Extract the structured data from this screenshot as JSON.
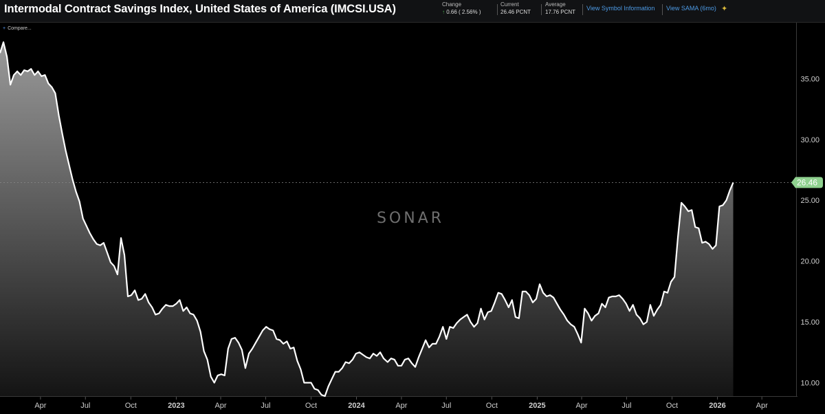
{
  "header": {
    "title": "Intermodal Contract Savings Index, United States of America (IMCSI.USA)",
    "change_label": "Change",
    "change_arrow": "↑",
    "change_value": "0.66 ( 2.56% )",
    "current_label": "Current",
    "current_value": "26.46 PCNT",
    "average_label": "Average",
    "average_value": "17.76 PCNT",
    "link_symbol_info": "View Symbol Information",
    "link_sama": "View SAMA (6mo)",
    "sama_icon": "chart-sparkle-icon"
  },
  "compare_label": "Compare...",
  "watermark": "SONAR",
  "colors": {
    "line": "#ffffff",
    "fill_top": "#9a9a9a",
    "fill_bottom": "#141414",
    "current_badge": "#8fd18f",
    "background": "#000000"
  },
  "chart_data": {
    "type": "area",
    "title": "Intermodal Contract Savings Index, United States of America (IMCSI.USA)",
    "xlabel": "",
    "ylabel": "",
    "ylim": [
      8.9,
      39.6
    ],
    "xlim": [
      "2022-01-09",
      "2026-06-01"
    ],
    "y_ticks": [
      "10.00",
      "15.00",
      "20.00",
      "25.00",
      "30.00",
      "35.00"
    ],
    "x_ticks": [
      {
        "date": "2022-04-01",
        "label": "Apr",
        "bold": false
      },
      {
        "date": "2022-07-01",
        "label": "Jul",
        "bold": false
      },
      {
        "date": "2022-10-01",
        "label": "Oct",
        "bold": false
      },
      {
        "date": "2023-01-01",
        "label": "2023",
        "bold": true
      },
      {
        "date": "2023-04-01",
        "label": "Apr",
        "bold": false
      },
      {
        "date": "2023-07-01",
        "label": "Jul",
        "bold": false
      },
      {
        "date": "2023-10-01",
        "label": "Oct",
        "bold": false
      },
      {
        "date": "2024-01-01",
        "label": "2024",
        "bold": true
      },
      {
        "date": "2024-04-01",
        "label": "Apr",
        "bold": false
      },
      {
        "date": "2024-07-01",
        "label": "Jul",
        "bold": false
      },
      {
        "date": "2024-10-01",
        "label": "Oct",
        "bold": false
      },
      {
        "date": "2025-01-01",
        "label": "2025",
        "bold": true
      },
      {
        "date": "2025-04-01",
        "label": "Apr",
        "bold": false
      },
      {
        "date": "2025-07-01",
        "label": "Jul",
        "bold": false
      },
      {
        "date": "2025-10-01",
        "label": "Oct",
        "bold": false
      },
      {
        "date": "2026-01-01",
        "label": "2026",
        "bold": true
      },
      {
        "date": "2026-04-01",
        "label": "Apr",
        "bold": false
      }
    ],
    "current": {
      "value": 26.46,
      "label": "26.46"
    },
    "series": [
      {
        "values": [
          [
            "2022-01-09",
            37.1
          ],
          [
            "2022-01-16",
            38.0
          ],
          [
            "2022-01-23",
            36.8
          ],
          [
            "2022-01-30",
            34.5
          ],
          [
            "2022-02-06",
            35.3
          ],
          [
            "2022-02-13",
            35.6
          ],
          [
            "2022-02-20",
            35.3
          ],
          [
            "2022-02-27",
            35.7
          ],
          [
            "2022-03-06",
            35.6
          ],
          [
            "2022-03-13",
            35.8
          ],
          [
            "2022-03-20",
            35.3
          ],
          [
            "2022-03-27",
            35.6
          ],
          [
            "2022-04-03",
            35.2
          ],
          [
            "2022-04-10",
            35.3
          ],
          [
            "2022-04-17",
            34.6
          ],
          [
            "2022-04-24",
            34.3
          ],
          [
            "2022-05-01",
            33.8
          ],
          [
            "2022-05-08",
            32.0
          ],
          [
            "2022-05-15",
            30.5
          ],
          [
            "2022-05-22",
            29.1
          ],
          [
            "2022-05-29",
            27.9
          ],
          [
            "2022-06-05",
            26.7
          ],
          [
            "2022-06-12",
            25.7
          ],
          [
            "2022-06-19",
            24.9
          ],
          [
            "2022-06-26",
            23.5
          ],
          [
            "2022-07-03",
            22.9
          ],
          [
            "2022-07-10",
            22.3
          ],
          [
            "2022-07-17",
            21.8
          ],
          [
            "2022-07-24",
            21.4
          ],
          [
            "2022-07-31",
            21.3
          ],
          [
            "2022-08-07",
            21.5
          ],
          [
            "2022-08-14",
            20.7
          ],
          [
            "2022-08-21",
            19.9
          ],
          [
            "2022-08-28",
            19.6
          ],
          [
            "2022-09-04",
            18.9
          ],
          [
            "2022-09-11",
            21.9
          ],
          [
            "2022-09-18",
            20.5
          ],
          [
            "2022-09-25",
            17.1
          ],
          [
            "2022-10-02",
            17.2
          ],
          [
            "2022-10-09",
            17.6
          ],
          [
            "2022-10-16",
            16.8
          ],
          [
            "2022-10-23",
            16.9
          ],
          [
            "2022-10-30",
            17.3
          ],
          [
            "2022-11-06",
            16.6
          ],
          [
            "2022-11-13",
            16.2
          ],
          [
            "2022-11-20",
            15.6
          ],
          [
            "2022-11-27",
            15.7
          ],
          [
            "2022-12-04",
            16.1
          ],
          [
            "2022-12-11",
            16.4
          ],
          [
            "2022-12-18",
            16.3
          ],
          [
            "2022-12-25",
            16.3
          ],
          [
            "2023-01-01",
            16.5
          ],
          [
            "2023-01-08",
            16.8
          ],
          [
            "2023-01-15",
            15.9
          ],
          [
            "2023-01-22",
            16.2
          ],
          [
            "2023-01-29",
            15.7
          ],
          [
            "2023-02-05",
            15.6
          ],
          [
            "2023-02-12",
            15.1
          ],
          [
            "2023-02-19",
            14.2
          ],
          [
            "2023-02-26",
            12.6
          ],
          [
            "2023-03-05",
            11.9
          ],
          [
            "2023-03-12",
            10.5
          ],
          [
            "2023-03-19",
            10.0
          ],
          [
            "2023-03-26",
            10.6
          ],
          [
            "2023-04-02",
            10.7
          ],
          [
            "2023-04-09",
            10.6
          ],
          [
            "2023-04-16",
            12.8
          ],
          [
            "2023-04-23",
            13.6
          ],
          [
            "2023-04-30",
            13.7
          ],
          [
            "2023-05-07",
            13.3
          ],
          [
            "2023-05-14",
            12.7
          ],
          [
            "2023-05-21",
            11.2
          ],
          [
            "2023-05-28",
            12.4
          ],
          [
            "2023-06-04",
            12.8
          ],
          [
            "2023-06-11",
            13.3
          ],
          [
            "2023-06-18",
            13.8
          ],
          [
            "2023-06-25",
            14.3
          ],
          [
            "2023-07-02",
            14.6
          ],
          [
            "2023-07-09",
            14.4
          ],
          [
            "2023-07-16",
            14.3
          ],
          [
            "2023-07-23",
            13.6
          ],
          [
            "2023-07-30",
            13.5
          ],
          [
            "2023-08-06",
            13.2
          ],
          [
            "2023-08-13",
            13.4
          ],
          [
            "2023-08-20",
            12.8
          ],
          [
            "2023-08-27",
            12.9
          ],
          [
            "2023-09-03",
            11.8
          ],
          [
            "2023-09-10",
            11.1
          ],
          [
            "2023-09-17",
            10.0
          ],
          [
            "2023-09-24",
            10.0
          ],
          [
            "2023-10-01",
            10.0
          ],
          [
            "2023-10-08",
            9.5
          ],
          [
            "2023-10-15",
            9.4
          ],
          [
            "2023-10-22",
            9.0
          ],
          [
            "2023-10-29",
            8.9
          ],
          [
            "2023-11-05",
            9.7
          ],
          [
            "2023-11-12",
            10.3
          ],
          [
            "2023-11-19",
            10.9
          ],
          [
            "2023-11-26",
            10.9
          ],
          [
            "2023-12-03",
            11.2
          ],
          [
            "2023-12-10",
            11.7
          ],
          [
            "2023-12-17",
            11.6
          ],
          [
            "2023-12-24",
            11.9
          ],
          [
            "2023-12-31",
            12.4
          ],
          [
            "2024-01-07",
            12.5
          ],
          [
            "2024-01-14",
            12.3
          ],
          [
            "2024-01-21",
            12.1
          ],
          [
            "2024-01-28",
            12.0
          ],
          [
            "2024-02-04",
            12.4
          ],
          [
            "2024-02-11",
            12.2
          ],
          [
            "2024-02-18",
            12.5
          ],
          [
            "2024-02-25",
            12.0
          ],
          [
            "2024-03-04",
            11.7
          ],
          [
            "2024-03-11",
            12.0
          ],
          [
            "2024-03-18",
            11.9
          ],
          [
            "2024-03-25",
            11.4
          ],
          [
            "2024-04-01",
            11.4
          ],
          [
            "2024-04-08",
            11.9
          ],
          [
            "2024-04-15",
            12.0
          ],
          [
            "2024-04-22",
            11.6
          ],
          [
            "2024-04-29",
            11.3
          ],
          [
            "2024-05-06",
            12.1
          ],
          [
            "2024-05-13",
            12.8
          ],
          [
            "2024-05-20",
            13.5
          ],
          [
            "2024-05-27",
            12.9
          ],
          [
            "2024-06-03",
            13.2
          ],
          [
            "2024-06-10",
            13.2
          ],
          [
            "2024-06-17",
            13.8
          ],
          [
            "2024-06-24",
            14.6
          ],
          [
            "2024-07-01",
            13.6
          ],
          [
            "2024-07-08",
            14.6
          ],
          [
            "2024-07-15",
            14.5
          ],
          [
            "2024-07-22",
            14.9
          ],
          [
            "2024-07-29",
            15.2
          ],
          [
            "2024-08-05",
            15.4
          ],
          [
            "2024-08-12",
            15.6
          ],
          [
            "2024-08-19",
            15.0
          ],
          [
            "2024-08-26",
            14.6
          ],
          [
            "2024-09-02",
            14.9
          ],
          [
            "2024-09-09",
            16.1
          ],
          [
            "2024-09-16",
            15.2
          ],
          [
            "2024-09-23",
            15.8
          ],
          [
            "2024-09-30",
            15.9
          ],
          [
            "2024-10-07",
            16.6
          ],
          [
            "2024-10-14",
            17.4
          ],
          [
            "2024-10-21",
            17.3
          ],
          [
            "2024-10-28",
            16.8
          ],
          [
            "2024-11-04",
            16.2
          ],
          [
            "2024-11-11",
            16.8
          ],
          [
            "2024-11-18",
            15.4
          ],
          [
            "2024-11-25",
            15.3
          ],
          [
            "2024-12-02",
            17.5
          ],
          [
            "2024-12-09",
            17.5
          ],
          [
            "2024-12-16",
            17.2
          ],
          [
            "2024-12-23",
            16.6
          ],
          [
            "2024-12-30",
            16.9
          ],
          [
            "2025-01-06",
            18.1
          ],
          [
            "2025-01-13",
            17.4
          ],
          [
            "2025-01-20",
            17.1
          ],
          [
            "2025-01-27",
            17.2
          ],
          [
            "2025-02-03",
            17.0
          ],
          [
            "2025-02-10",
            16.5
          ],
          [
            "2025-02-17",
            16.0
          ],
          [
            "2025-02-24",
            15.6
          ],
          [
            "2025-03-03",
            15.1
          ],
          [
            "2025-03-10",
            14.8
          ],
          [
            "2025-03-17",
            14.6
          ],
          [
            "2025-03-24",
            14.0
          ],
          [
            "2025-03-31",
            13.3
          ],
          [
            "2025-04-07",
            16.1
          ],
          [
            "2025-04-14",
            15.7
          ],
          [
            "2025-04-21",
            15.1
          ],
          [
            "2025-04-28",
            15.5
          ],
          [
            "2025-05-05",
            15.7
          ],
          [
            "2025-05-12",
            16.5
          ],
          [
            "2025-05-19",
            16.2
          ],
          [
            "2025-05-26",
            17.0
          ],
          [
            "2025-06-02",
            17.1
          ],
          [
            "2025-06-09",
            17.1
          ],
          [
            "2025-06-16",
            17.2
          ],
          [
            "2025-06-23",
            16.9
          ],
          [
            "2025-06-30",
            16.5
          ],
          [
            "2025-07-07",
            15.9
          ],
          [
            "2025-07-14",
            16.4
          ],
          [
            "2025-07-21",
            15.6
          ],
          [
            "2025-07-28",
            15.3
          ],
          [
            "2025-08-04",
            14.8
          ],
          [
            "2025-08-11",
            15.0
          ],
          [
            "2025-08-18",
            16.4
          ],
          [
            "2025-08-25",
            15.5
          ],
          [
            "2025-09-01",
            16.0
          ],
          [
            "2025-09-08",
            16.4
          ],
          [
            "2025-09-15",
            17.5
          ],
          [
            "2025-09-22",
            17.4
          ],
          [
            "2025-09-29",
            18.3
          ],
          [
            "2025-10-06",
            18.7
          ],
          [
            "2025-10-13",
            22.0
          ],
          [
            "2025-10-20",
            24.8
          ],
          [
            "2025-10-27",
            24.5
          ],
          [
            "2025-11-03",
            24.1
          ],
          [
            "2025-11-10",
            24.2
          ],
          [
            "2025-11-17",
            22.8
          ],
          [
            "2025-11-24",
            22.7
          ],
          [
            "2025-12-01",
            21.5
          ],
          [
            "2025-12-08",
            21.6
          ],
          [
            "2025-12-15",
            21.4
          ],
          [
            "2025-12-22",
            21.0
          ],
          [
            "2025-12-29",
            21.3
          ],
          [
            "2026-01-05",
            24.5
          ],
          [
            "2026-01-12",
            24.6
          ],
          [
            "2026-01-19",
            25.0
          ],
          [
            "2026-01-26",
            25.8
          ],
          [
            "2026-02-02",
            26.46
          ]
        ]
      }
    ]
  }
}
